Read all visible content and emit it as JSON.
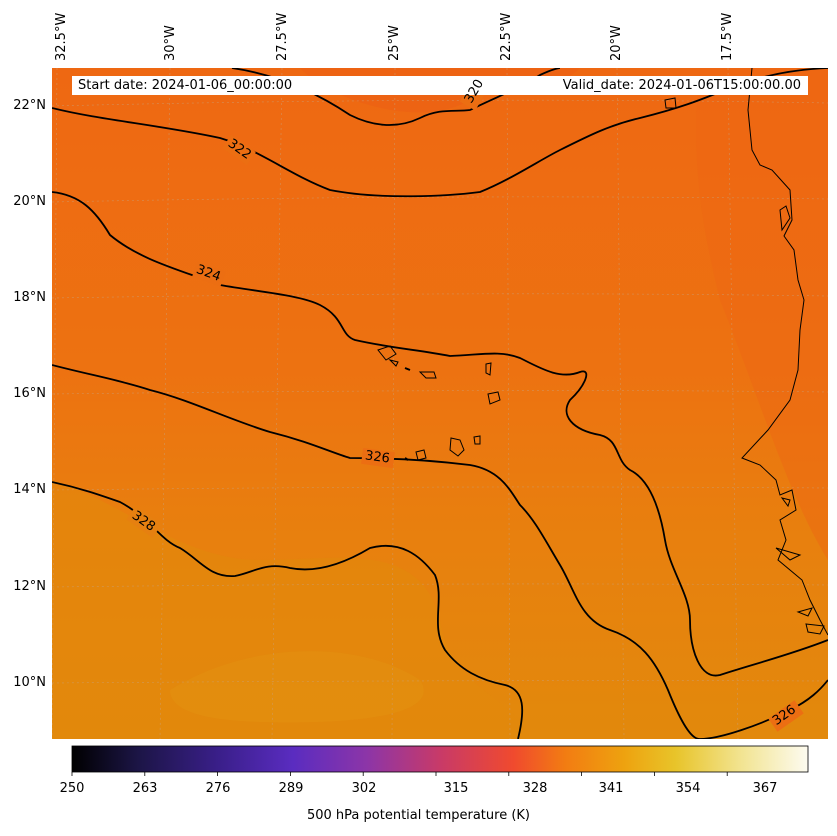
{
  "header": {
    "start_date": "Start date: 2024-01-06_00:00:00",
    "valid_date": "Valid_date: 2024-01-06T15:00:00.00"
  },
  "map": {
    "longitude_labels": [
      "32.5°W",
      "30°W",
      "27.5°W",
      "25°W",
      "22.5°W",
      "20°W",
      "17.5°W"
    ],
    "latitude_labels": [
      "22°N",
      "20°N",
      "18°N",
      "16°N",
      "14°N",
      "12°N",
      "10°N"
    ],
    "contour_labels": [
      "320",
      "322",
      "324",
      "326",
      "328",
      "326"
    ],
    "colors": {
      "warm_north": "#ee6a12",
      "mid": "#ec7610",
      "south": "#e2870c",
      "contour": "#000000",
      "coastline": "#000000",
      "gridline": "#c9a07a"
    }
  },
  "colorbar": {
    "ticks": [
      "250",
      "263",
      "276",
      "289",
      "302",
      "315",
      "328",
      "341",
      "354",
      "367"
    ],
    "range": [
      250,
      373
    ],
    "label": "500 hPa potential temperature (K)",
    "colormap": [
      "#000000",
      "#1c1546",
      "#3a1f8a",
      "#5a2cc0",
      "#8c35a8",
      "#c83a68",
      "#f04a2e",
      "#f27c12",
      "#eea20f",
      "#e8c42a",
      "#f2e492",
      "#fdfbf0"
    ]
  }
}
